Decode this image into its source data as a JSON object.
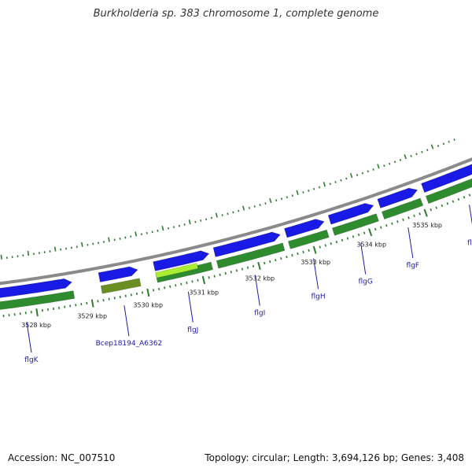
{
  "title": "Burkholderia sp. 383 chromosome 1, complete genome",
  "footer": {
    "accession": "Accession: NC_007510",
    "summary": "Topology: circular; Length: 3,694,126 bp; Genes: 3,408"
  },
  "colors": {
    "backbone": "#8a8a8a",
    "forward_gene": "#1a1ae6",
    "cds": "#2e8b2e",
    "highlight": "#aaee33",
    "selected_gene": "#6b8e23",
    "ticks": "#2e7d2e",
    "label": "#1a1aa6"
  },
  "ruler": {
    "unit": "kbp",
    "ticks": [
      {
        "pos": 3528,
        "label": "3528 kbp"
      },
      {
        "pos": 3529,
        "label": "3529 kbp"
      },
      {
        "pos": 3530,
        "label": "3530 kbp"
      },
      {
        "pos": 3531,
        "label": "3531 kbp"
      },
      {
        "pos": 3532,
        "label": "3532 kbp"
      },
      {
        "pos": 3533,
        "label": "3533 kbp"
      },
      {
        "pos": 3534,
        "label": "3534 kbp"
      },
      {
        "pos": 3535,
        "label": "3535 kbp"
      }
    ]
  },
  "genes": [
    {
      "name": "flgK",
      "start": 3526.9,
      "end": 3528.7,
      "strand": "+"
    },
    {
      "name": "Bcep18194_A6362",
      "start": 3529.2,
      "end": 3529.9,
      "strand": "+",
      "selected": true
    },
    {
      "name": "flgJ",
      "start": 3530.2,
      "end": 3531.2,
      "strand": "+",
      "highlight": true
    },
    {
      "name": "flgI",
      "start": 3531.3,
      "end": 3532.5,
      "strand": "+"
    },
    {
      "name": "flgH",
      "start": 3532.6,
      "end": 3533.3,
      "strand": "+"
    },
    {
      "name": "flgG",
      "start": 3533.4,
      "end": 3534.2,
      "strand": "+"
    },
    {
      "name": "flgF",
      "start": 3534.3,
      "end": 3535.0,
      "strand": "+"
    },
    {
      "name": "flgE",
      "start": 3535.1,
      "end": 3536.4,
      "strand": "+"
    }
  ]
}
